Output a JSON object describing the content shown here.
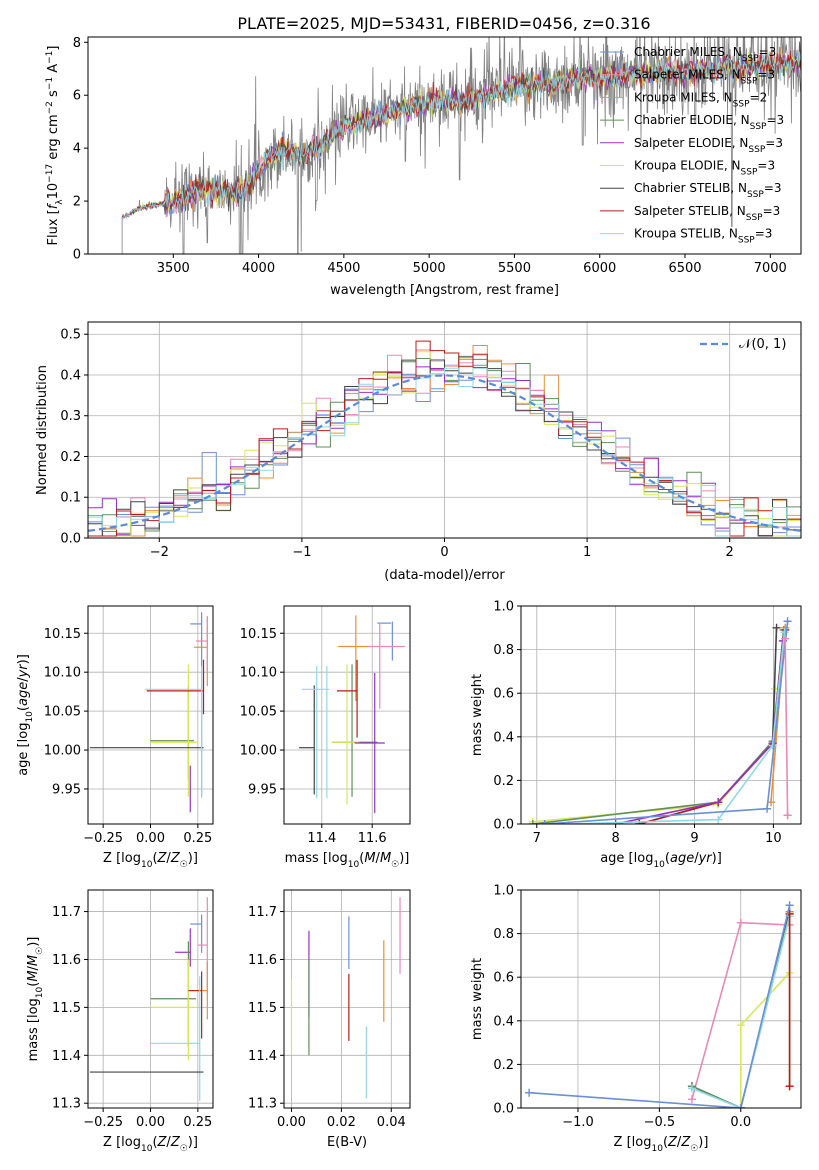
{
  "figure": {
    "title": "PLATE=2025, MJD=53431, FIBERID=0456, z=0.316"
  },
  "colors": {
    "ChabrierMILES": "#6c8fd6",
    "SalpeterMILES": "#e78ab8",
    "KroupaMILES": "#e8913a",
    "ChabrierELODIE": "#5f8f5a",
    "SalpeterELODIE": "#9a2fc2",
    "KroupaELODIE": "#d7e65a",
    "ChabrierSTELIB": "#444444",
    "SalpeterSTELIB": "#b81c1c",
    "KroupaSTELIB": "#8fd9e6",
    "spectrum": "#808080",
    "normal": "#5b8bd8",
    "grid": "#b0b0b0"
  },
  "chart_data": [
    {
      "id": "spectrum",
      "type": "line",
      "title": "PLATE=2025, MJD=53431, FIBERID=0456, z=0.316",
      "xlabel": "wavelength [Angstrom, rest frame]",
      "ylabel": "Flux [f_λ 10^-17 erg cm^-2 s^-1 A^-1]",
      "xlim": [
        3000,
        7180
      ],
      "ylim": [
        0,
        8.2
      ],
      "xticks": [
        3500,
        4000,
        4500,
        5000,
        5500,
        6000,
        6500,
        7000
      ],
      "yticks": [
        0,
        2,
        4,
        6,
        8
      ],
      "grid": false,
      "legend_position": "upper right",
      "legend": [
        {
          "key": "ChabrierMILES",
          "label": "Chabrier MILES, N",
          "sub": "SSP",
          "tail": "=3"
        },
        {
          "key": "SalpeterMILES",
          "label": "Salpeter MILES, N",
          "sub": "SSP",
          "tail": "=3"
        },
        {
          "key": "KroupaMILES",
          "label": "Kroupa MILES, N",
          "sub": "SSP",
          "tail": "=2"
        },
        {
          "key": "ChabrierELODIE",
          "label": "Chabrier ELODIE, N",
          "sub": "SSP",
          "tail": "=3"
        },
        {
          "key": "SalpeterELODIE",
          "label": "Salpeter ELODIE, N",
          "sub": "SSP",
          "tail": "=3"
        },
        {
          "key": "KroupaELODIE",
          "label": "Kroupa ELODIE, N",
          "sub": "SSP",
          "tail": "=3"
        },
        {
          "key": "ChabrierSTELIB",
          "label": "Chabrier STELIB, N",
          "sub": "SSP",
          "tail": "=3"
        },
        {
          "key": "SalpeterSTELIB",
          "label": "Salpeter STELIB, N",
          "sub": "SSP",
          "tail": "=3"
        },
        {
          "key": "KroupaSTELIB",
          "label": "Kroupa STELIB, N",
          "sub": "SSP",
          "tail": "=3"
        }
      ],
      "continuum": {
        "x": [
          3210,
          3300,
          3450,
          3550,
          3650,
          3750,
          3850,
          3950,
          4050,
          4150,
          4250,
          4350,
          4500,
          4650,
          4800,
          4950,
          5100,
          5250,
          5400,
          5550,
          5700,
          5850,
          6000,
          6200,
          6400,
          6600,
          6800,
          7000,
          7180
        ],
        "y": [
          1.4,
          1.75,
          1.9,
          2.1,
          2.5,
          2.35,
          2.3,
          2.65,
          3.55,
          4.0,
          3.75,
          4.05,
          4.85,
          5.05,
          5.4,
          5.65,
          5.8,
          5.8,
          6.1,
          6.4,
          6.45,
          6.6,
          6.65,
          6.8,
          6.9,
          6.95,
          7.05,
          7.15,
          7.2
        ]
      },
      "data_range": [
        3200,
        7180
      ]
    },
    {
      "id": "residuals",
      "type": "histogram",
      "xlabel": "(data-model)/error",
      "ylabel": "Normed distribution",
      "xlim": [
        -2.5,
        2.5
      ],
      "ylim": [
        0,
        0.53
      ],
      "xticks": [
        -2,
        -1,
        0,
        1,
        2
      ],
      "yticks": [
        0.0,
        0.1,
        0.2,
        0.3,
        0.4,
        0.5
      ],
      "grid": true,
      "bin_width": 0.1,
      "legend_position": "upper right",
      "legend_label": "𝒩(0, 1)",
      "series_order": [
        "ChabrierMILES",
        "SalpeterMILES",
        "KroupaMILES",
        "ChabrierELODIE",
        "SalpeterELODIE",
        "KroupaELODIE",
        "ChabrierSTELIB",
        "SalpeterSTELIB",
        "KroupaSTELIB"
      ]
    },
    {
      "id": "age-vs-Z",
      "type": "errorbar",
      "xlabel": "Z [log10(Z/Z☉)]",
      "ylabel": "age [log10(age/yr)]",
      "xlim": [
        -0.33,
        0.33
      ],
      "ylim": [
        9.905,
        10.185
      ],
      "xticks": [
        -0.25,
        0.0,
        0.25
      ],
      "xticklabels": [
        "−0.25",
        "0.00",
        "0.25"
      ],
      "yticks": [
        9.95,
        10.0,
        10.05,
        10.1,
        10.15
      ],
      "grid": true,
      "points": [
        {
          "key": "ChabrierMILES",
          "x": 0.27,
          "xerr": [
            0.06,
            0.0
          ],
          "y": 10.162,
          "yerr": [
            0.22,
            0.015
          ]
        },
        {
          "key": "KroupaMILES",
          "x": 0.3,
          "xerr": [
            0.07,
            0.0
          ],
          "y": 10.132,
          "yerr": [
            0.05,
            0.04
          ]
        },
        {
          "key": "SalpeterMILES",
          "x": 0.3,
          "xerr": [
            0.06,
            0.0
          ],
          "y": 10.14,
          "yerr": [
            0.04,
            0.03
          ]
        },
        {
          "key": "ChabrierELODIE",
          "x": 0.2,
          "xerr": [
            0.2,
            0.03
          ],
          "y": 10.012,
          "yerr": [
            0.05,
            0.07
          ]
        },
        {
          "key": "KroupaELODIE",
          "x": 0.2,
          "xerr": [
            0.2,
            0.05
          ],
          "y": 10.01,
          "yerr": [
            0.07,
            0.1
          ]
        },
        {
          "key": "SalpeterELODIE",
          "x": 0.21,
          "xerr": [
            0.0,
            0.0
          ],
          "y": 9.96,
          "yerr": [
            0.04,
            0.02
          ]
        },
        {
          "key": "ChabrierSTELIB",
          "x": 0.28,
          "xerr": [
            0.6,
            0.0
          ],
          "y": 10.003,
          "yerr": [
            0.0,
            0.0
          ]
        },
        {
          "key": "SalpeterSTELIB",
          "x": 0.28,
          "xerr": [
            0.3,
            0.0
          ],
          "y": 10.076,
          "yerr": [
            0.03,
            0.04
          ]
        },
        {
          "key": "KroupaSTELIB",
          "x": 0.27,
          "xerr": [
            0.3,
            0.0
          ],
          "y": 10.078,
          "yerr": [
            0.14,
            0.03
          ]
        }
      ]
    },
    {
      "id": "age-vs-mass",
      "type": "errorbar",
      "xlabel": "mass [log10(M/M☉)]",
      "ylabel": "",
      "xlim": [
        11.25,
        11.75
      ],
      "ylim": [
        9.905,
        10.185
      ],
      "xticks": [
        11.4,
        11.6
      ],
      "yticks": [
        9.95,
        10.0,
        10.05,
        10.1,
        10.15
      ],
      "grid": true,
      "points": [
        {
          "key": "ChabrierMILES",
          "x": 11.675,
          "xerr": [
            0.055,
            0.0
          ],
          "y": 10.163,
          "yerr": [
            0.0,
            0.0
          ]
        },
        {
          "key": "ChabrierMILES",
          "x": 11.68,
          "xerr": [
            0.0,
            0.0
          ],
          "y": 10.135,
          "yerr": [
            0.02,
            0.03
          ]
        },
        {
          "key": "KroupaMILES",
          "x": 11.535,
          "xerr": [
            0.07,
            0.05
          ],
          "y": 10.133,
          "yerr": [
            0.07,
            0.04
          ]
        },
        {
          "key": "SalpeterMILES",
          "x": 11.63,
          "xerr": [
            0.05,
            0.1
          ],
          "y": 10.133,
          "yerr": [
            0.08,
            0.03
          ]
        },
        {
          "key": "ChabrierELODIE",
          "x": 11.52,
          "xerr": [
            0.08,
            0.1
          ],
          "y": 10.01,
          "yerr": [
            0.07,
            0.1
          ]
        },
        {
          "key": "KroupaELODIE",
          "x": 11.5,
          "xerr": [
            0.06,
            0.05
          ],
          "y": 10.01,
          "yerr": [
            0.08,
            0.1
          ]
        },
        {
          "key": "SalpeterELODIE",
          "x": 11.61,
          "xerr": [
            0.08,
            0.04
          ],
          "y": 10.009,
          "yerr": [
            0.09,
            0.09
          ]
        },
        {
          "key": "ChabrierSTELIB",
          "x": 11.37,
          "xerr": [
            0.06,
            0.0
          ],
          "y": 10.003,
          "yerr": [
            0.06,
            0.08
          ]
        },
        {
          "key": "SalpeterSTELIB",
          "x": 11.54,
          "xerr": [
            0.08,
            0.0
          ],
          "y": 10.076,
          "yerr": [
            0.06,
            0.04
          ]
        },
        {
          "key": "KroupaSTELIB",
          "x": 11.38,
          "xerr": [
            0.06,
            0.05
          ],
          "y": 10.078,
          "yerr": [
            0.14,
            0.03
          ]
        },
        {
          "key": "KroupaSTELIB",
          "x": 11.42,
          "xerr": [
            0.0,
            0.0
          ],
          "y": 10.078,
          "yerr": [
            0.14,
            0.03
          ]
        }
      ]
    },
    {
      "id": "weight-vs-age",
      "type": "line",
      "xlabel": "age [log10(age/yr)]",
      "ylabel": "mass weight",
      "xlim": [
        6.8,
        10.35
      ],
      "ylim": [
        0,
        1.0
      ],
      "xticks": [
        7,
        8,
        9,
        10
      ],
      "yticks": [
        0.0,
        0.2,
        0.4,
        0.6,
        0.8,
        1.0
      ],
      "grid": true,
      "series": [
        {
          "key": "KroupaELODIE",
          "x": [
            6.95,
            9.3,
            9.99,
            10.02
          ],
          "y": [
            0.01,
            0.09,
            0.38,
            0.62
          ]
        },
        {
          "key": "ChabrierELODIE",
          "x": [
            6.95,
            9.3,
            9.99,
            10.13
          ],
          "y": [
            0.0,
            0.1,
            0.38,
            0.89
          ]
        },
        {
          "key": "ChabrierSTELIB",
          "x": [
            8.3,
            9.3,
            9.99,
            10.04
          ],
          "y": [
            0.0,
            0.1,
            0.37,
            0.9
          ]
        },
        {
          "key": "SalpeterSTELIB",
          "x": [
            8.3,
            9.3,
            9.99,
            10.15
          ],
          "y": [
            0.0,
            0.1,
            0.37,
            0.89
          ]
        },
        {
          "key": "KroupaMILES",
          "x": [
            9.97,
            10.15
          ],
          "y": [
            0.1,
            0.9
          ]
        },
        {
          "key": "SalpeterELODIE",
          "x": [
            8.0,
            9.3,
            9.99,
            10.12
          ],
          "y": [
            0.0,
            0.1,
            0.37,
            0.84
          ]
        },
        {
          "key": "KroupaSTELIB",
          "x": [
            7.4,
            9.3,
            9.99,
            10.14
          ],
          "y": [
            0.0,
            0.02,
            0.36,
            0.88
          ]
        },
        {
          "key": "ChabrierMILES",
          "x": [
            7.1,
            9.92,
            10.18
          ],
          "y": [
            0.0,
            0.07,
            0.93
          ]
        },
        {
          "key": "SalpeterMILES",
          "x": [
            10.15,
            10.18,
            10.18
          ],
          "y": [
            0.85,
            0.04,
            0.04
          ]
        }
      ]
    },
    {
      "id": "mass-vs-Z",
      "type": "errorbar",
      "xlabel": "Z [log10(Z/Z☉)]",
      "ylabel": "mass [log10(M/M☉)]",
      "xlim": [
        -0.33,
        0.33
      ],
      "ylim": [
        11.29,
        11.745
      ],
      "xticks": [
        -0.25,
        0.0,
        0.25
      ],
      "xticklabels": [
        "−0.25",
        "0.00",
        "0.25"
      ],
      "yticks": [
        11.3,
        11.4,
        11.5,
        11.6,
        11.7
      ],
      "grid": true,
      "points": [
        {
          "key": "ChabrierMILES",
          "x": 0.27,
          "xerr": [
            0.06,
            0.0
          ],
          "y": 11.674,
          "yerr": [
            0.06,
            0.02
          ]
        },
        {
          "key": "SalpeterMILES",
          "x": 0.3,
          "xerr": [
            0.05,
            0.0
          ],
          "y": 11.63,
          "yerr": [
            0.1,
            0.1
          ]
        },
        {
          "key": "KroupaMILES",
          "x": 0.3,
          "xerr": [
            0.05,
            0.0
          ],
          "y": 11.535,
          "yerr": [
            0.06,
            0.06
          ]
        },
        {
          "key": "SalpeterELODIE",
          "x": 0.21,
          "xerr": [
            0.08,
            0.0
          ],
          "y": 11.615,
          "yerr": [
            0.03,
            0.05
          ]
        },
        {
          "key": "ChabrierELODIE",
          "x": 0.2,
          "xerr": [
            0.2,
            0.04
          ],
          "y": 11.518,
          "yerr": [
            0.1,
            0.12
          ]
        },
        {
          "key": "KroupaELODIE",
          "x": 0.2,
          "xerr": [
            0.2,
            0.05
          ],
          "y": 11.5,
          "yerr": [
            0.11,
            0.1
          ]
        },
        {
          "key": "SalpeterSTELIB",
          "x": 0.27,
          "xerr": [
            0.07,
            0.0
          ],
          "y": 11.535,
          "yerr": [
            0.1,
            0.04
          ]
        },
        {
          "key": "KroupaSTELIB",
          "x": 0.26,
          "xerr": [
            0.26,
            0.0
          ],
          "y": 11.425,
          "yerr": [
            0.12,
            0.14
          ]
        },
        {
          "key": "ChabrierSTELIB",
          "x": 0.28,
          "xerr": [
            0.6,
            0.0
          ],
          "y": 11.365,
          "yerr": [
            0.0,
            0.0
          ]
        }
      ]
    },
    {
      "id": "mass-vs-EBV",
      "type": "errorbar",
      "xlabel": "E(B-V)",
      "ylabel": "",
      "xlim": [
        -0.003,
        0.0475
      ],
      "ylim": [
        11.29,
        11.745
      ],
      "xticks": [
        0.0,
        0.02,
        0.04
      ],
      "xticklabels": [
        "0.00",
        "0.02",
        "0.04"
      ],
      "yticks": [
        11.3,
        11.4,
        11.5,
        11.6,
        11.7
      ],
      "grid": true,
      "points": [
        {
          "key": "KroupaELODIE",
          "x": 0.0,
          "xerr": [
            0,
            0
          ],
          "y": 11.5,
          "yerr": [
            0.1,
            0.06
          ]
        },
        {
          "key": "SalpeterELODIE",
          "x": 0.007,
          "xerr": [
            0,
            0
          ],
          "y": 11.6,
          "yerr": [
            0.12,
            0.06
          ]
        },
        {
          "key": "ChabrierELODIE",
          "x": 0.007,
          "xerr": [
            0,
            0
          ],
          "y": 11.5,
          "yerr": [
            0.1,
            0.1
          ]
        },
        {
          "key": "ChabrierMILES",
          "x": 0.023,
          "xerr": [
            0,
            0
          ],
          "y": 11.65,
          "yerr": [
            0.07,
            0.04
          ]
        },
        {
          "key": "SalpeterSTELIB",
          "x": 0.023,
          "xerr": [
            0,
            0
          ],
          "y": 11.5,
          "yerr": [
            0.07,
            0.07
          ]
        },
        {
          "key": "KroupaSTELIB",
          "x": 0.03,
          "xerr": [
            0,
            0
          ],
          "y": 11.4,
          "yerr": [
            0.09,
            0.06
          ]
        },
        {
          "key": "KroupaMILES",
          "x": 0.037,
          "xerr": [
            0,
            0
          ],
          "y": 11.53,
          "yerr": [
            0.06,
            0.11
          ]
        },
        {
          "key": "SalpeterMILES",
          "x": 0.0435,
          "xerr": [
            0,
            0
          ],
          "y": 11.65,
          "yerr": [
            0.08,
            0.08
          ]
        }
      ]
    },
    {
      "id": "weight-vs-Z",
      "type": "line",
      "xlabel": "Z [log10(Z/Z☉)]",
      "ylabel": "mass weight",
      "xlim": [
        -1.35,
        0.37
      ],
      "ylim": [
        0,
        1.0
      ],
      "xticks": [
        -1.0,
        -0.5,
        0.0
      ],
      "xticklabels": [
        "−1.0",
        "−0.5",
        "0.0"
      ],
      "yticks": [
        0.0,
        0.2,
        0.4,
        0.6,
        0.8,
        1.0
      ],
      "grid": true,
      "series": [
        {
          "key": "SalpeterMILES",
          "x": [
            -0.3,
            0.0,
            0.3
          ],
          "y": [
            0.04,
            0.85,
            0.84
          ]
        },
        {
          "key": "ChabrierSTELIB",
          "x": [
            -0.3,
            0.0,
            0.3
          ],
          "y": [
            0.1,
            0.0,
            0.9
          ]
        },
        {
          "key": "KroupaELODIE",
          "x": [
            0.0,
            0.0,
            0.3
          ],
          "y": [
            0.0,
            0.38,
            0.62
          ]
        },
        {
          "key": "ChabrierELODIE",
          "x": [
            -0.3,
            0.0,
            0.3
          ],
          "y": [
            0.1,
            0.0,
            0.89
          ]
        },
        {
          "key": "KroupaSTELIB",
          "x": [
            -0.3,
            0.0,
            0.3
          ],
          "y": [
            0.09,
            0.0,
            0.88
          ]
        },
        {
          "key": "KroupaMILES",
          "x": [
            0.3,
            0.3,
            0.3
          ],
          "y": [
            0.1,
            0.9,
            0.1
          ]
        },
        {
          "key": "SalpeterSTELIB",
          "x": [
            0.3,
            0.3
          ],
          "y": [
            0.1,
            0.89
          ]
        },
        {
          "key": "ChabrierMILES",
          "x": [
            -1.3,
            0.0,
            0.3
          ],
          "y": [
            0.07,
            0.0,
            0.93
          ]
        }
      ]
    }
  ]
}
